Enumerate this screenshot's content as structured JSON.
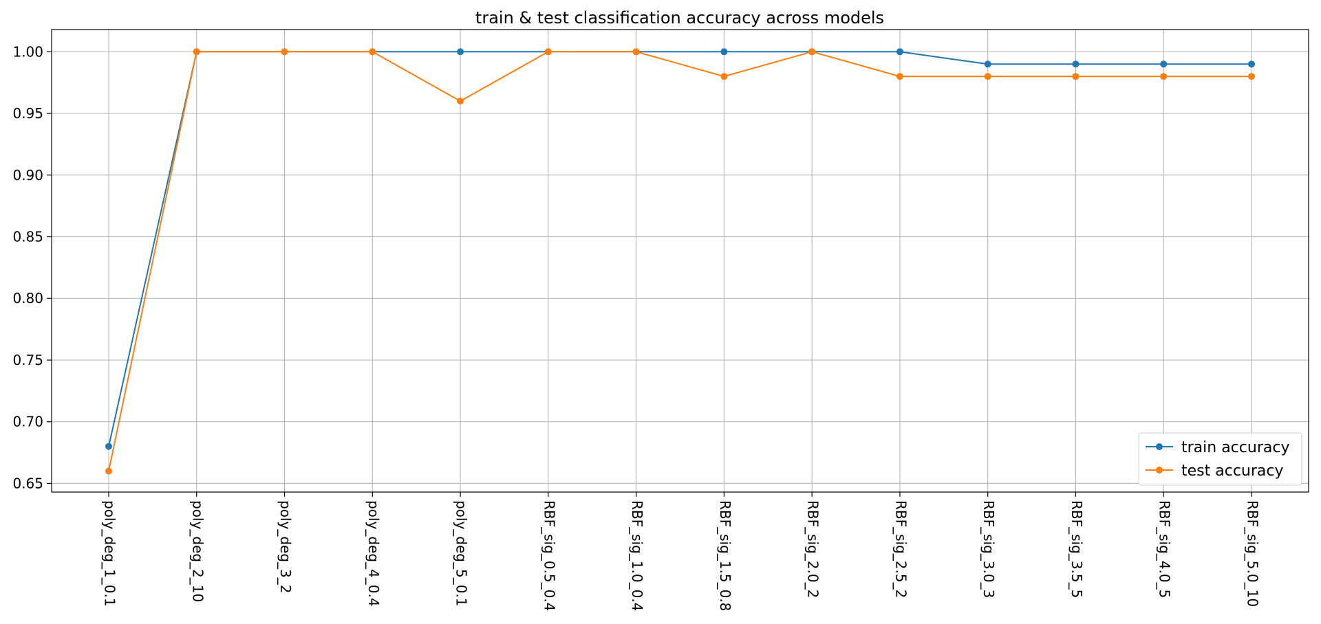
{
  "chart_data": {
    "type": "line",
    "title": "train & test classification accuracy across models",
    "xlabel": "",
    "ylabel": "",
    "categories": [
      "poly_deg_1_0.1",
      "poly_deg_2_10",
      "poly_deg_3_2",
      "poly_deg_4_0.4",
      "poly_deg_5_0.1",
      "RBF_sig_0.5_0.4",
      "RBF_sig_1.0_0.4",
      "RBF_sig_1.5_0.8",
      "RBF_sig_2.0_2",
      "RBF_sig_2.5_2",
      "RBF_sig_3.0_3",
      "RBF_sig_3.5_5",
      "RBF_sig_4.0_5",
      "RBF_sig_5.0_10"
    ],
    "series": [
      {
        "name": "train accuracy",
        "color": "#1f77b4",
        "values": [
          0.68,
          1.0,
          1.0,
          1.0,
          1.0,
          1.0,
          1.0,
          1.0,
          1.0,
          1.0,
          0.99,
          0.99,
          0.99,
          0.99
        ]
      },
      {
        "name": "test accuracy",
        "color": "#ff7f0e",
        "values": [
          0.66,
          1.0,
          1.0,
          1.0,
          0.96,
          1.0,
          1.0,
          0.98,
          1.0,
          0.98,
          0.98,
          0.98,
          0.98,
          0.98
        ]
      }
    ],
    "yticks": [
      "0.65",
      "0.70",
      "0.75",
      "0.80",
      "0.85",
      "0.90",
      "0.95",
      "1.00"
    ],
    "ylim": [
      0.643,
      1.018
    ],
    "grid": true,
    "legend_position": "lower-right",
    "marker": "circle"
  }
}
